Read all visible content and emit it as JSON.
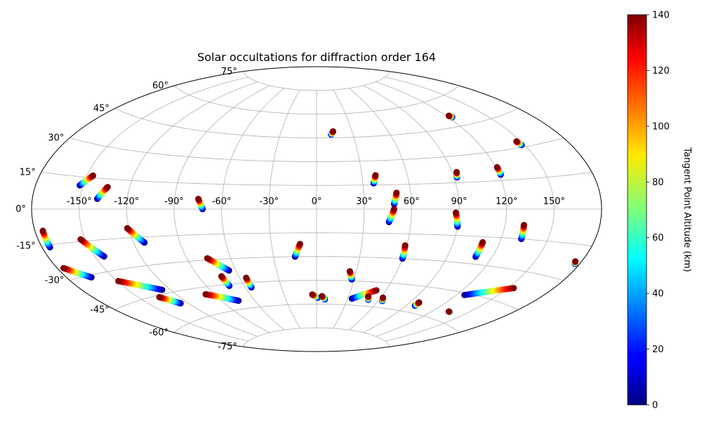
{
  "chart_data": {
    "type": "scatter",
    "projection": "aitoff",
    "title": "Solar occultations for diffraction order 164",
    "grid": true,
    "lon_ticks": [
      "-150°",
      "-120°",
      "-90°",
      "-60°",
      "-30°",
      "0°",
      "30°",
      "60°",
      "90°",
      "120°",
      "150°"
    ],
    "lon_tick_values": [
      -150,
      -120,
      -90,
      -60,
      -30,
      0,
      30,
      60,
      90,
      120,
      150
    ],
    "lat_ticks": [
      "-75°",
      "-60°",
      "-45°",
      "-30°",
      "-15°",
      "0°",
      "15°",
      "30°",
      "45°",
      "60°",
      "75°"
    ],
    "lat_tick_values": [
      -75,
      -60,
      -45,
      -30,
      -15,
      0,
      15,
      30,
      45,
      60,
      75
    ],
    "colorbar": {
      "label": "Tangent Point Altitude (km)",
      "colormap": "jet",
      "range": [
        0,
        140
      ],
      "ticks": [
        "0",
        "20",
        "40",
        "60",
        "80",
        "100",
        "120",
        "140"
      ],
      "tick_values": [
        0,
        20,
        40,
        60,
        80,
        100,
        120,
        140
      ]
    },
    "tracks": [
      {
        "lon_start": 12,
        "lat_start": 47,
        "lon_end": 14,
        "lat_end": 49
      },
      {
        "lon_start": 123,
        "lat_start": 50,
        "lon_end": 122,
        "lat_end": 51
      },
      {
        "lon_start": 148,
        "lat_start": 31,
        "lon_end": 147,
        "lat_end": 33
      },
      {
        "lon_start": 37,
        "lat_start": 16,
        "lon_end": 39,
        "lat_end": 21
      },
      {
        "lon_start": 92,
        "lat_start": 18,
        "lon_end": 93,
        "lat_end": 21
      },
      {
        "lon_start": 121,
        "lat_start": 18,
        "lon_end": 121,
        "lat_end": 22
      },
      {
        "lon_start": 49,
        "lat_start": 3,
        "lon_end": 51,
        "lat_end": 10
      },
      {
        "lon_start": 46,
        "lat_start": -8,
        "lon_end": 49,
        "lat_end": 0
      },
      {
        "lon_start": 90,
        "lat_start": -10,
        "lon_end": 88,
        "lat_end": -2
      },
      {
        "lon_start": 133,
        "lat_start": -15,
        "lon_end": 132,
        "lat_end": -8
      },
      {
        "lon_start": 109,
        "lat_start": -26,
        "lon_end": 109,
        "lat_end": -18
      },
      {
        "lon_start": 60,
        "lat_start": -30,
        "lon_end": 59,
        "lat_end": -22
      },
      {
        "lon_start": -15,
        "lat_start": -30,
        "lon_end": -11,
        "lat_end": -22
      },
      {
        "lon_start": -152,
        "lat_start": 11,
        "lon_end": -146,
        "lat_end": 16
      },
      {
        "lon_start": -139,
        "lat_start": 5,
        "lon_end": -134,
        "lat_end": 11
      },
      {
        "lon_start": -72,
        "lat_start": 0,
        "lon_end": -75,
        "lat_end": 6
      },
      {
        "lon_start": -175,
        "lat_start": -16,
        "lon_end": -175,
        "lat_end": -9
      },
      {
        "lon_start": -144,
        "lat_start": -23,
        "lon_end": -153,
        "lat_end": -14
      },
      {
        "lon_start": -113,
        "lat_start": -18,
        "lon_end": -121,
        "lat_end": -10
      },
      {
        "lon_start": -164,
        "lat_start": -31,
        "lon_end": -176,
        "lat_end": -25
      },
      {
        "lon_start": -126,
        "lat_start": -43,
        "lon_end": -149,
        "lat_end": -35
      },
      {
        "lon_start": -65,
        "lat_start": -37,
        "lon_end": -76,
        "lat_end": -29
      },
      {
        "lon_start": -72,
        "lat_start": -46,
        "lon_end": -73,
        "lat_end": -40
      },
      {
        "lon_start": -55,
        "lat_start": -48,
        "lon_end": -55,
        "lat_end": -42
      },
      {
        "lon_start": -126,
        "lat_start": -51,
        "lon_end": -135,
        "lat_end": -46
      },
      {
        "lon_start": -75,
        "lat_start": -55,
        "lon_end": -97,
        "lat_end": -49
      },
      {
        "lon_start": 28,
        "lat_start": -44,
        "lon_end": 25,
        "lat_end": -39
      },
      {
        "lon_start": 34,
        "lat_start": -56,
        "lon_end": 52,
        "lat_end": -50
      },
      {
        "lon_start": 1,
        "lat_start": -56,
        "lon_end": -4,
        "lat_end": -54
      },
      {
        "lon_start": 8,
        "lat_start": -57,
        "lon_end": 5,
        "lat_end": -55
      },
      {
        "lon_start": 50,
        "lat_start": -56,
        "lon_end": 48,
        "lat_end": -54
      },
      {
        "lon_start": 64,
        "lat_start": -56,
        "lon_end": 62,
        "lat_end": -54
      },
      {
        "lon_start": 98,
        "lat_start": -56,
        "lon_end": 98,
        "lat_end": -54
      },
      {
        "lon_start": 135,
        "lat_start": -55,
        "lon_end": 134,
        "lat_end": -55
      },
      {
        "lon_start": 126,
        "lat_start": -46,
        "lon_end": 154,
        "lat_end": -38
      },
      {
        "lon_start": 177,
        "lat_start": -23,
        "lon_end": 176,
        "lat_end": -22
      }
    ]
  }
}
